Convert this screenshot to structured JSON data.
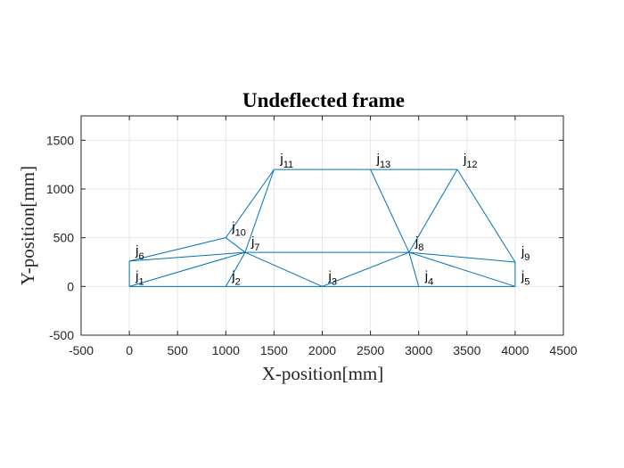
{
  "chart_data": {
    "type": "line",
    "title": "Undeflected frame",
    "xlabel": "X-position[mm]",
    "ylabel": "Y-position[mm]",
    "xlim": [
      -500,
      4500
    ],
    "ylim": [
      -500,
      1750
    ],
    "xticks": [
      -500,
      0,
      500,
      1000,
      1500,
      2000,
      2500,
      3000,
      3500,
      4000,
      4500
    ],
    "yticks": [
      -500,
      0,
      500,
      1000,
      1500
    ],
    "xtick_labels": [
      "-500",
      "0",
      "500",
      "1000",
      "1500",
      "2000",
      "2500",
      "3000",
      "3500",
      "4000",
      "4500"
    ],
    "ytick_labels": [
      "-500",
      "0",
      "500",
      "1000",
      "1500"
    ],
    "grid": true,
    "line_color": "#0072bd",
    "joints": [
      {
        "id": 1,
        "prefix": "j",
        "sub": "1",
        "x": 0,
        "y": 0
      },
      {
        "id": 2,
        "prefix": "j",
        "sub": "2",
        "x": 1000,
        "y": 0
      },
      {
        "id": 3,
        "prefix": "j",
        "sub": "3",
        "x": 2000,
        "y": 0
      },
      {
        "id": 4,
        "prefix": "j",
        "sub": "4",
        "x": 3000,
        "y": 0
      },
      {
        "id": 5,
        "prefix": "j",
        "sub": "5",
        "x": 4000,
        "y": 0
      },
      {
        "id": 6,
        "prefix": "j",
        "sub": "6",
        "x": 0,
        "y": 260
      },
      {
        "id": 7,
        "prefix": "j",
        "sub": "7",
        "x": 1200,
        "y": 350
      },
      {
        "id": 8,
        "prefix": "j",
        "sub": "8",
        "x": 2900,
        "y": 350
      },
      {
        "id": 9,
        "prefix": "j",
        "sub": "9",
        "x": 4000,
        "y": 250
      },
      {
        "id": 10,
        "prefix": "j",
        "sub": "10",
        "x": 1000,
        "y": 500
      },
      {
        "id": 11,
        "prefix": "j",
        "sub": "11",
        "x": 1500,
        "y": 1200
      },
      {
        "id": 12,
        "prefix": "j",
        "sub": "12",
        "x": 3400,
        "y": 1200
      },
      {
        "id": 13,
        "prefix": "j",
        "sub": "13",
        "x": 2500,
        "y": 1200
      }
    ],
    "members": [
      [
        1,
        2
      ],
      [
        2,
        3
      ],
      [
        3,
        4
      ],
      [
        4,
        5
      ],
      [
        1,
        6
      ],
      [
        5,
        9
      ],
      [
        6,
        7
      ],
      [
        7,
        8
      ],
      [
        8,
        9
      ],
      [
        6,
        10
      ],
      [
        10,
        7
      ],
      [
        10,
        11
      ],
      [
        11,
        13
      ],
      [
        13,
        12
      ],
      [
        11,
        7
      ],
      [
        13,
        8
      ],
      [
        12,
        8
      ],
      [
        12,
        9
      ],
      [
        1,
        7
      ],
      [
        2,
        7
      ],
      [
        3,
        7
      ],
      [
        3,
        8
      ],
      [
        4,
        8
      ],
      [
        5,
        8
      ]
    ]
  }
}
